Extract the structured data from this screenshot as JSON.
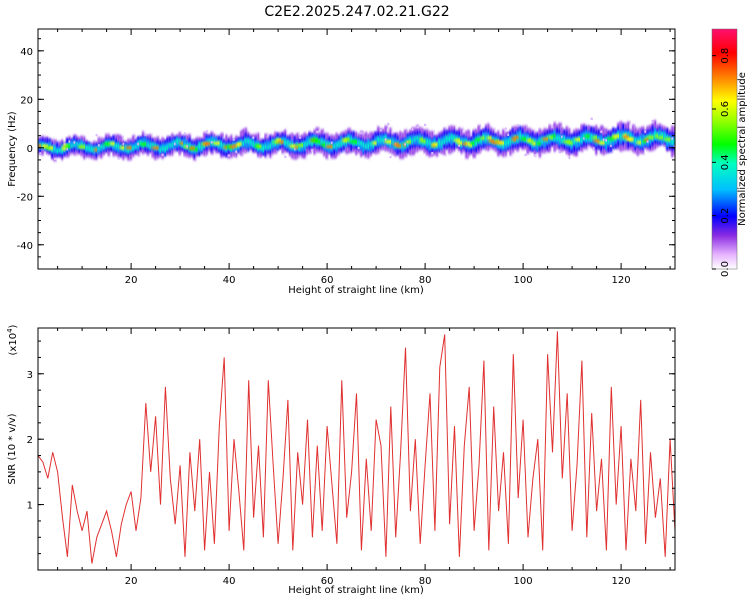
{
  "title": "C2E2.2025.247.02.21.G22",
  "chart_data": [
    {
      "type": "heatmap",
      "name": "spectrogram",
      "xlabel": "Height of straight line (km)",
      "ylabel": "Frequency (Hz)",
      "xlim": [
        1,
        131
      ],
      "ylim": [
        -50,
        49
      ],
      "xticks": [
        "20",
        "40",
        "60",
        "80",
        "100",
        "120"
      ],
      "yticks": [
        "40",
        "20",
        "0",
        "-20",
        "-40"
      ],
      "xtick_values": [
        20,
        40,
        60,
        80,
        100,
        120
      ],
      "ytick_values": [
        40,
        20,
        0,
        -20,
        -40
      ],
      "band_center_start": 0,
      "band_center_end": 4,
      "band_halfwidth_start": 3.5,
      "band_halfwidth_end": 5,
      "colorbar": {
        "label": "Normalized spectral amplitude",
        "range": [
          0,
          0.9
        ],
        "ticks": [
          "0.0",
          "0.2",
          "0.4",
          "0.6",
          "0.8"
        ],
        "tick_values": [
          0,
          0.2,
          0.4,
          0.6,
          0.8
        ]
      }
    },
    {
      "type": "line",
      "name": "snr",
      "xlabel": "Height of straight line (km)",
      "ylabel": "SNR (10 * v/v)",
      "scale_label": "(x10",
      "scale_exp": "4",
      "scale_close": ")",
      "xlim": [
        1,
        131
      ],
      "ylim": [
        0,
        3.7
      ],
      "xticks": [
        "20",
        "40",
        "60",
        "80",
        "100",
        "120"
      ],
      "yticks": [
        "3",
        "2",
        "1"
      ],
      "xtick_values": [
        20,
        40,
        60,
        80,
        100,
        120
      ],
      "ytick_values": [
        3,
        2,
        1
      ],
      "color": "#e03030",
      "series": [
        {
          "name": "SNR",
          "x": [
            1,
            2,
            3,
            4,
            5,
            6,
            7,
            8,
            9,
            10,
            11,
            12,
            13,
            14,
            15,
            16,
            17,
            18,
            19,
            20,
            21,
            22,
            23,
            24,
            25,
            26,
            27,
            28,
            29,
            30,
            31,
            32,
            33,
            34,
            35,
            36,
            37,
            38,
            39,
            40,
            41,
            42,
            43,
            44,
            45,
            46,
            47,
            48,
            49,
            50,
            51,
            52,
            53,
            54,
            55,
            56,
            57,
            58,
            59,
            60,
            61,
            62,
            63,
            64,
            65,
            66,
            67,
            68,
            69,
            70,
            71,
            72,
            73,
            74,
            75,
            76,
            77,
            78,
            79,
            80,
            81,
            82,
            83,
            84,
            85,
            86,
            87,
            88,
            89,
            90,
            91,
            92,
            93,
            94,
            95,
            96,
            97,
            98,
            99,
            100,
            101,
            102,
            103,
            104,
            105,
            106,
            107,
            108,
            109,
            110,
            111,
            112,
            113,
            114,
            115,
            116,
            117,
            118,
            119,
            120,
            121,
            122,
            123,
            124,
            125,
            126,
            127,
            128,
            129,
            130,
            131
          ],
          "y": [
            1.75,
            1.65,
            1.4,
            1.8,
            1.5,
            0.8,
            0.2,
            1.3,
            0.9,
            0.6,
            0.9,
            0.1,
            0.5,
            0.7,
            0.9,
            0.6,
            0.2,
            0.7,
            1.0,
            1.2,
            0.6,
            1.1,
            2.55,
            1.5,
            2.35,
            1.0,
            2.8,
            1.4,
            0.7,
            1.6,
            0.2,
            1.8,
            0.9,
            2.0,
            0.3,
            1.5,
            0.4,
            2.2,
            3.25,
            0.6,
            2.0,
            1.2,
            0.3,
            2.9,
            0.8,
            1.9,
            0.5,
            2.9,
            1.6,
            0.4,
            1.4,
            2.6,
            0.3,
            1.8,
            1.0,
            2.3,
            0.5,
            1.9,
            0.6,
            2.2,
            1.3,
            0.4,
            2.9,
            0.8,
            1.5,
            2.7,
            0.3,
            1.7,
            0.6,
            2.3,
            1.9,
            0.2,
            2.5,
            0.5,
            1.8,
            3.4,
            0.9,
            2.0,
            0.4,
            1.6,
            2.7,
            0.6,
            3.1,
            3.6,
            0.7,
            2.2,
            0.2,
            1.9,
            2.8,
            0.6,
            1.6,
            3.2,
            0.3,
            2.5,
            0.9,
            1.8,
            0.4,
            3.3,
            1.1,
            2.3,
            0.5,
            1.4,
            2.0,
            0.3,
            3.3,
            1.8,
            3.65,
            1.4,
            2.7,
            0.6,
            1.6,
            3.2,
            0.5,
            2.4,
            0.9,
            1.7,
            0.3,
            2.8,
            1.0,
            2.2,
            0.3,
            1.7,
            0.9,
            2.6,
            0.4,
            1.8,
            0.8,
            1.4,
            0.2,
            2.0,
            0.6
          ]
        }
      ]
    }
  ]
}
